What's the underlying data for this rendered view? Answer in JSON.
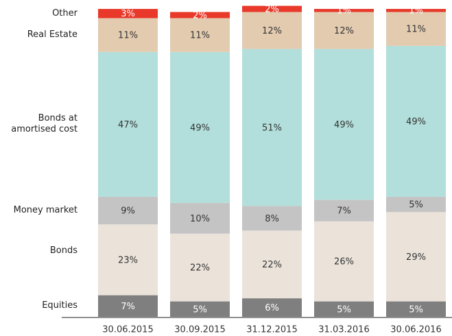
{
  "chart_data": {
    "type": "stacked_bar",
    "categories": [
      "30.06.2015",
      "30.09.2015",
      "31.12.2015",
      "31.03.2016",
      "30.06.2016"
    ],
    "series": [
      {
        "name": "Equities",
        "color": "#7f7f7f",
        "values": [
          7,
          5,
          6,
          5,
          5
        ],
        "value_labels": [
          "7%",
          "5%",
          "6%",
          "5%",
          "5%"
        ]
      },
      {
        "name": "Bonds",
        "color": "#ebe3da",
        "values": [
          23,
          22,
          22,
          26,
          29
        ],
        "value_labels": [
          "23%",
          "22%",
          "22%",
          "26%",
          "29%"
        ]
      },
      {
        "name": "Money market",
        "color": "#c4c4c4",
        "values": [
          9,
          10,
          8,
          7,
          5
        ],
        "value_labels": [
          "9%",
          "10%",
          "8%",
          "7%",
          "5%"
        ]
      },
      {
        "name": "Bonds at amortised cost",
        "color": "#b2dfdb",
        "values": [
          47,
          49,
          51,
          49,
          49
        ],
        "value_labels": [
          "47%",
          "49%",
          "51%",
          "49%",
          "49%"
        ]
      },
      {
        "name": "Real Estate",
        "color": "#e3cbb0",
        "values": [
          11,
          11,
          12,
          12,
          11
        ],
        "value_labels": [
          "11%",
          "11%",
          "12%",
          "12%",
          "11%"
        ]
      },
      {
        "name": "Other",
        "color": "#e8392a",
        "values": [
          3,
          2,
          2,
          1,
          1
        ],
        "value_labels": [
          "3%",
          "2%",
          "2%",
          "1%",
          "1%"
        ]
      }
    ]
  }
}
